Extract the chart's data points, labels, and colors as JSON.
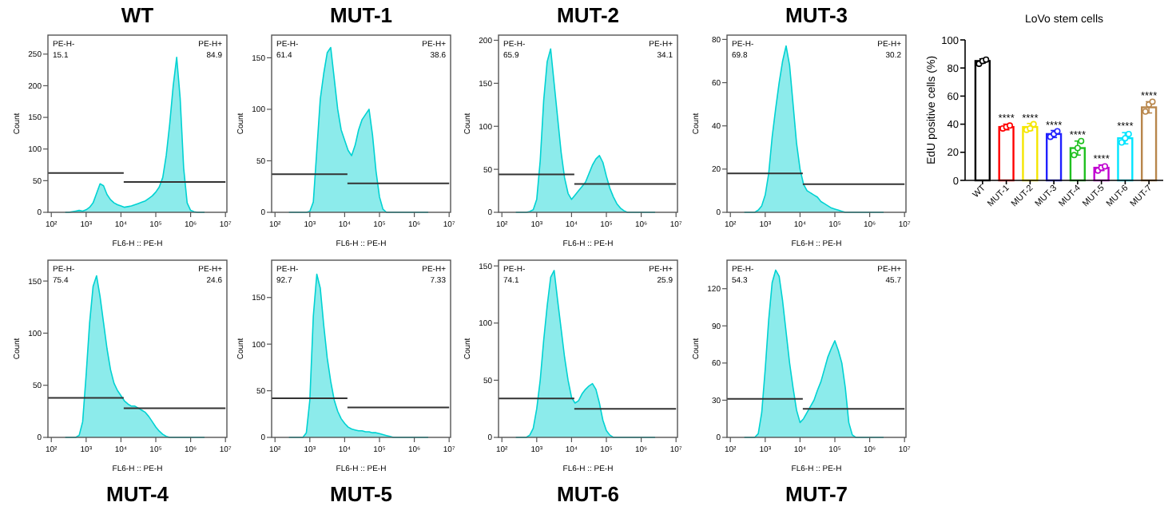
{
  "chart_data": [
    {
      "type": "area",
      "title": "WT",
      "xlabel": "FL6-H :: PE-H",
      "ylabel": "Count",
      "log": "x",
      "xlim": [
        80,
        11000000
      ],
      "xticks": [
        {
          "value": 100,
          "label": "10²"
        },
        {
          "value": 1000,
          "label": "10³"
        },
        {
          "value": 10000,
          "label": "10⁴"
        },
        {
          "value": 100000,
          "label": "10⁵"
        },
        {
          "value": 1000000,
          "label": "10⁶"
        },
        {
          "value": 10000000,
          "label": "10⁷"
        }
      ],
      "ylim": [
        0,
        280
      ],
      "yticks": [
        0,
        50,
        100,
        150,
        200,
        250
      ],
      "x": [
        251,
        316,
        398,
        501,
        631,
        794,
        1000,
        1259,
        1585,
        1995,
        2512,
        3162,
        3981,
        5012,
        6310,
        7943,
        10000,
        12589,
        15849,
        19953,
        25119,
        31623,
        39811,
        50119,
        63096,
        79433,
        100000,
        125893,
        158489,
        199526,
        251189,
        316228,
        398107,
        501187,
        630957,
        794328,
        1000000,
        1258925,
        1584893,
        1995262,
        2511886
      ],
      "series": [
        {
          "type": "area",
          "color": "#00d2d2",
          "values": [
            0,
            0,
            1,
            2,
            3,
            2,
            4,
            8,
            15,
            30,
            45,
            42,
            28,
            20,
            15,
            12,
            10,
            8,
            9,
            10,
            12,
            14,
            16,
            18,
            22,
            26,
            32,
            40,
            55,
            90,
            140,
            200,
            245,
            180,
            70,
            15,
            3,
            1,
            0,
            0,
            0
          ]
        },
        {
          "type": "line",
          "color": "#333333",
          "x": [
            80,
            12000
          ],
          "values": [
            62,
            62
          ]
        },
        {
          "type": "line",
          "color": "#333333",
          "x": [
            12000,
            10000000
          ],
          "values": [
            48,
            48
          ]
        }
      ],
      "annotations": [
        "PE-H-",
        "15.1",
        "PE-H+",
        "84.9"
      ]
    },
    {
      "type": "area",
      "title": "MUT-1",
      "xlabel": "FL6-H :: PE-H",
      "ylabel": "Count",
      "log": "x",
      "xlim": [
        80,
        11000000
      ],
      "xticks": [
        {
          "value": 100,
          "label": "10²"
        },
        {
          "value": 1000,
          "label": "10³"
        },
        {
          "value": 10000,
          "label": "10⁴"
        },
        {
          "value": 100000,
          "label": "10⁵"
        },
        {
          "value": 1000000,
          "label": "10⁶"
        },
        {
          "value": 10000000,
          "label": "10⁷"
        }
      ],
      "ylim": [
        0,
        172
      ],
      "yticks": [
        0,
        50,
        100,
        150
      ],
      "x": [
        251,
        316,
        398,
        501,
        631,
        794,
        1000,
        1259,
        1585,
        1995,
        2512,
        3162,
        3981,
        5012,
        6310,
        7943,
        10000,
        12589,
        15849,
        19953,
        25119,
        31623,
        39811,
        50119,
        63096,
        79433,
        100000,
        125893,
        158489,
        199526,
        251189,
        316228,
        398107,
        501187,
        630957,
        794328,
        1000000,
        1258925,
        1584893,
        1995262,
        2511886
      ],
      "series": [
        {
          "type": "area",
          "color": "#00d2d2",
          "values": [
            0,
            0,
            0,
            0,
            0,
            0,
            1,
            10,
            60,
            110,
            135,
            155,
            160,
            130,
            100,
            80,
            70,
            60,
            55,
            65,
            80,
            90,
            95,
            100,
            75,
            40,
            15,
            3,
            0,
            0,
            0,
            0,
            0,
            0,
            0,
            0,
            0,
            0,
            0,
            0,
            0
          ]
        },
        {
          "type": "line",
          "color": "#333333",
          "x": [
            80,
            12000
          ],
          "values": [
            37,
            37
          ]
        },
        {
          "type": "line",
          "color": "#333333",
          "x": [
            12000,
            10000000
          ],
          "values": [
            28,
            28
          ]
        }
      ],
      "annotations": [
        "PE-H-",
        "61.4",
        "PE-H+",
        "38.6"
      ]
    },
    {
      "type": "area",
      "title": "MUT-2",
      "xlabel": "FL6-H :: PE-H",
      "ylabel": "Count",
      "log": "x",
      "xlim": [
        80,
        11000000
      ],
      "xticks": [
        {
          "value": 100,
          "label": "10²"
        },
        {
          "value": 1000,
          "label": "10³"
        },
        {
          "value": 10000,
          "label": "10⁴"
        },
        {
          "value": 100000,
          "label": "10⁵"
        },
        {
          "value": 1000000,
          "label": "10⁶"
        },
        {
          "value": 10000000,
          "label": "10⁷"
        }
      ],
      "ylim": [
        0,
        206
      ],
      "yticks": [
        0,
        50,
        100,
        150,
        200
      ],
      "x": [
        251,
        316,
        398,
        501,
        631,
        794,
        1000,
        1259,
        1585,
        1995,
        2512,
        3162,
        3981,
        5012,
        6310,
        7943,
        10000,
        12589,
        15849,
        19953,
        25119,
        31623,
        39811,
        50119,
        63096,
        79433,
        100000,
        125893,
        158489,
        199526,
        251189,
        316228,
        398107,
        501187,
        630957,
        794328,
        1000000,
        1258925,
        1584893,
        1995262,
        2511886
      ],
      "series": [
        {
          "type": "area",
          "color": "#00d2d2",
          "values": [
            0,
            0,
            0,
            0,
            1,
            3,
            15,
            60,
            130,
            175,
            190,
            150,
            110,
            70,
            40,
            22,
            15,
            20,
            25,
            30,
            35,
            45,
            55,
            62,
            66,
            58,
            42,
            28,
            18,
            10,
            5,
            2,
            0,
            0,
            0,
            0,
            0,
            0,
            0,
            0,
            0
          ]
        },
        {
          "type": "line",
          "color": "#333333",
          "x": [
            80,
            12000
          ],
          "values": [
            44,
            44
          ]
        },
        {
          "type": "line",
          "color": "#333333",
          "x": [
            12000,
            10000000
          ],
          "values": [
            33,
            33
          ]
        }
      ],
      "annotations": [
        "PE-H-",
        "65.9",
        "PE-H+",
        "34.1"
      ]
    },
    {
      "type": "area",
      "title": "MUT-3",
      "xlabel": "FL6-H :: PE-H",
      "ylabel": "Count",
      "log": "x",
      "xlim": [
        80,
        11000000
      ],
      "xticks": [
        {
          "value": 100,
          "label": "10²"
        },
        {
          "value": 1000,
          "label": "10³"
        },
        {
          "value": 10000,
          "label": "10⁴"
        },
        {
          "value": 100000,
          "label": "10⁵"
        },
        {
          "value": 1000000,
          "label": "10⁶"
        },
        {
          "value": 10000000,
          "label": "10⁷"
        }
      ],
      "ylim": [
        0,
        82
      ],
      "yticks": [
        0,
        20,
        40,
        60,
        80
      ],
      "x": [
        251,
        316,
        398,
        501,
        631,
        794,
        1000,
        1259,
        1585,
        1995,
        2512,
        3162,
        3981,
        5012,
        6310,
        7943,
        10000,
        12589,
        15849,
        19953,
        25119,
        31623,
        39811,
        50119,
        63096,
        79433,
        100000,
        125893,
        158489,
        199526,
        251189,
        316228,
        398107,
        501187,
        630957,
        794328,
        1000000,
        1258925,
        1584893,
        1995262,
        2511886
      ],
      "series": [
        {
          "type": "area",
          "color": "#00d2d2",
          "values": [
            0,
            0,
            0,
            0,
            1,
            3,
            8,
            18,
            35,
            48,
            60,
            70,
            77,
            68,
            50,
            32,
            20,
            13,
            10,
            9,
            8,
            7,
            5,
            4,
            3,
            2,
            1.5,
            1,
            0.5,
            0,
            0,
            0,
            0,
            0,
            0,
            0,
            0,
            0,
            0,
            0,
            0
          ]
        },
        {
          "type": "line",
          "color": "#333333",
          "x": [
            80,
            12000
          ],
          "values": [
            18,
            18
          ]
        },
        {
          "type": "line",
          "color": "#333333",
          "x": [
            12000,
            10000000
          ],
          "values": [
            13,
            13
          ]
        }
      ],
      "annotations": [
        "PE-H-",
        "69.8",
        "PE-H+",
        "30.2"
      ]
    },
    {
      "type": "area",
      "title": "MUT-4",
      "xlabel": "FL6-H :: PE-H",
      "ylabel": "Count",
      "log": "x",
      "xlim": [
        80,
        11000000
      ],
      "xticks": [
        {
          "value": 100,
          "label": "10²"
        },
        {
          "value": 1000,
          "label": "10³"
        },
        {
          "value": 10000,
          "label": "10⁴"
        },
        {
          "value": 100000,
          "label": "10⁵"
        },
        {
          "value": 1000000,
          "label": "10⁶"
        },
        {
          "value": 10000000,
          "label": "10⁷"
        }
      ],
      "ylim": [
        0,
        170
      ],
      "yticks": [
        0,
        50,
        100,
        150
      ],
      "x": [
        251,
        316,
        398,
        501,
        631,
        794,
        1000,
        1259,
        1585,
        1995,
        2512,
        3162,
        3981,
        5012,
        6310,
        7943,
        10000,
        12589,
        15849,
        19953,
        25119,
        31623,
        39811,
        50119,
        63096,
        79433,
        100000,
        125893,
        158489,
        199526,
        251189,
        316228,
        398107,
        501187,
        630957,
        794328,
        1000000,
        1258925,
        1584893,
        1995262,
        2511886
      ],
      "series": [
        {
          "type": "area",
          "color": "#00d2d2",
          "values": [
            0,
            0,
            0,
            0,
            2,
            15,
            60,
            110,
            145,
            155,
            135,
            110,
            85,
            65,
            52,
            45,
            40,
            35,
            32,
            30,
            30,
            28,
            26,
            24,
            20,
            15,
            10,
            6,
            3,
            1,
            0,
            0,
            0,
            0,
            0,
            0,
            0,
            0,
            0,
            0,
            0
          ]
        },
        {
          "type": "line",
          "color": "#333333",
          "x": [
            80,
            12000
          ],
          "values": [
            38,
            38
          ]
        },
        {
          "type": "line",
          "color": "#333333",
          "x": [
            12000,
            10000000
          ],
          "values": [
            28,
            28
          ]
        }
      ],
      "annotations": [
        "PE-H-",
        "75.4",
        "PE-H+",
        "24.6"
      ]
    },
    {
      "type": "area",
      "title": "MUT-5",
      "xlabel": "FL6-H :: PE-H",
      "ylabel": "Count",
      "log": "x",
      "xlim": [
        80,
        11000000
      ],
      "xticks": [
        {
          "value": 100,
          "label": "10²"
        },
        {
          "value": 1000,
          "label": "10³"
        },
        {
          "value": 10000,
          "label": "10⁴"
        },
        {
          "value": 100000,
          "label": "10⁵"
        },
        {
          "value": 1000000,
          "label": "10⁶"
        },
        {
          "value": 10000000,
          "label": "10⁷"
        }
      ],
      "ylim": [
        0,
        190
      ],
      "yticks": [
        0,
        50,
        100,
        150
      ],
      "x": [
        251,
        316,
        398,
        501,
        631,
        794,
        1000,
        1259,
        1585,
        1995,
        2512,
        3162,
        3981,
        5012,
        6310,
        7943,
        10000,
        12589,
        15849,
        19953,
        25119,
        31623,
        39811,
        50119,
        63096,
        79433,
        100000,
        125893,
        158489,
        199526,
        251189,
        316228,
        398107,
        501187,
        630957,
        794328,
        1000000,
        1258925,
        1584893,
        1995262,
        2511886
      ],
      "series": [
        {
          "type": "area",
          "color": "#00d2d2",
          "values": [
            0,
            0,
            0,
            0,
            0,
            5,
            40,
            130,
            175,
            160,
            120,
            85,
            60,
            40,
            28,
            20,
            15,
            11,
            9,
            8,
            7,
            7,
            6,
            6,
            5,
            5,
            4,
            3,
            2,
            1,
            0,
            0,
            0,
            0,
            0,
            0,
            0,
            0,
            0,
            0,
            0
          ]
        },
        {
          "type": "line",
          "color": "#333333",
          "x": [
            80,
            12000
          ],
          "values": [
            42,
            42
          ]
        },
        {
          "type": "line",
          "color": "#333333",
          "x": [
            12000,
            10000000
          ],
          "values": [
            32,
            32
          ]
        }
      ],
      "annotations": [
        "PE-H-",
        "92.7",
        "PE-H+",
        "7.33"
      ]
    },
    {
      "type": "area",
      "title": "MUT-6",
      "xlabel": "FL6-H :: PE-H",
      "ylabel": "Count",
      "log": "x",
      "xlim": [
        80,
        11000000
      ],
      "xticks": [
        {
          "value": 100,
          "label": "10²"
        },
        {
          "value": 1000,
          "label": "10³"
        },
        {
          "value": 10000,
          "label": "10⁴"
        },
        {
          "value": 100000,
          "label": "10⁵"
        },
        {
          "value": 1000000,
          "label": "10⁶"
        },
        {
          "value": 10000000,
          "label": "10⁷"
        }
      ],
      "ylim": [
        0,
        155
      ],
      "yticks": [
        0,
        50,
        100,
        150
      ],
      "x": [
        251,
        316,
        398,
        501,
        631,
        794,
        1000,
        1259,
        1585,
        1995,
        2512,
        3162,
        3981,
        5012,
        6310,
        7943,
        10000,
        12589,
        15849,
        19953,
        25119,
        31623,
        39811,
        50119,
        63096,
        79433,
        100000,
        125893,
        158489,
        199526,
        251189,
        316228,
        398107,
        501187,
        630957,
        794328,
        1000000,
        1258925,
        1584893,
        1995262,
        2511886
      ],
      "series": [
        {
          "type": "area",
          "color": "#00d2d2",
          "values": [
            0,
            0,
            0,
            0,
            2,
            8,
            25,
            50,
            85,
            115,
            140,
            146,
            120,
            95,
            70,
            50,
            35,
            30,
            32,
            38,
            42,
            45,
            47,
            42,
            30,
            15,
            6,
            2,
            0,
            0,
            0,
            0,
            0,
            0,
            0,
            0,
            0,
            0,
            0,
            0,
            0
          ]
        },
        {
          "type": "line",
          "color": "#333333",
          "x": [
            80,
            12000
          ],
          "values": [
            34,
            34
          ]
        },
        {
          "type": "line",
          "color": "#333333",
          "x": [
            12000,
            10000000
          ],
          "values": [
            25,
            25
          ]
        }
      ],
      "annotations": [
        "PE-H-",
        "74.1",
        "PE-H+",
        "25.9"
      ]
    },
    {
      "type": "area",
      "title": "MUT-7",
      "xlabel": "FL6-H :: PE-H",
      "ylabel": "Count",
      "log": "x",
      "xlim": [
        80,
        11000000
      ],
      "xticks": [
        {
          "value": 100,
          "label": "10²"
        },
        {
          "value": 1000,
          "label": "10³"
        },
        {
          "value": 10000,
          "label": "10⁴"
        },
        {
          "value": 100000,
          "label": "10⁵"
        },
        {
          "value": 1000000,
          "label": "10⁶"
        },
        {
          "value": 10000000,
          "label": "10⁷"
        }
      ],
      "ylim": [
        0,
        143
      ],
      "yticks": [
        0,
        30,
        60,
        90,
        120
      ],
      "x": [
        251,
        316,
        398,
        501,
        631,
        794,
        1000,
        1259,
        1585,
        1995,
        2512,
        3162,
        3981,
        5012,
        6310,
        7943,
        10000,
        12589,
        15849,
        19953,
        25119,
        31623,
        39811,
        50119,
        63096,
        79433,
        100000,
        125893,
        158489,
        199526,
        251189,
        316228,
        398107,
        501187,
        630957,
        794328,
        1000000,
        1258925,
        1584893,
        1995262,
        2511886
      ],
      "series": [
        {
          "type": "area",
          "color": "#00d2d2",
          "values": [
            0,
            0,
            0,
            0,
            3,
            20,
            55,
            95,
            125,
            135,
            130,
            110,
            85,
            60,
            40,
            22,
            12,
            15,
            20,
            25,
            30,
            38,
            45,
            55,
            65,
            72,
            78,
            70,
            60,
            40,
            12,
            2,
            0,
            0,
            0,
            0,
            0,
            0,
            0,
            0,
            0
          ]
        },
        {
          "type": "line",
          "color": "#333333",
          "x": [
            80,
            12000
          ],
          "values": [
            31,
            31
          ]
        },
        {
          "type": "line",
          "color": "#333333",
          "x": [
            12000,
            10000000
          ],
          "values": [
            23,
            23
          ]
        }
      ],
      "annotations": [
        "PE-H-",
        "54.3",
        "PE-H+",
        "45.7"
      ]
    },
    {
      "type": "bar",
      "title": "LoVo stem cells",
      "ylabel": "EdU positive cells (%)",
      "categories": [
        "WT",
        "MUT-1",
        "MUT-2",
        "MUT-3",
        "MUT-4",
        "MUT-5",
        "MUT-6",
        "MUT-7"
      ],
      "ylim": [
        0,
        100
      ],
      "yticks": [
        0,
        20,
        40,
        60,
        80,
        100
      ],
      "series": [
        {
          "type": "bar",
          "values": [
            85,
            38,
            38,
            33,
            23,
            9,
            30,
            52
          ],
          "colors": [
            "#000000",
            "#ff0000",
            "#f5e600",
            "#2020ff",
            "#20c020",
            "#c000d0",
            "#00e5ff",
            "#b8864b"
          ],
          "errors": [
            1.5,
            2,
            2.5,
            2.5,
            5,
            2,
            4,
            4
          ]
        },
        {
          "type": "scatter",
          "marker": "circle",
          "x": [
            "WT",
            "WT",
            "WT",
            "MUT-1",
            "MUT-1",
            "MUT-1",
            "MUT-2",
            "MUT-2",
            "MUT-2",
            "MUT-3",
            "MUT-3",
            "MUT-3",
            "MUT-4",
            "MUT-4",
            "MUT-4",
            "MUT-5",
            "MUT-5",
            "MUT-5",
            "MUT-6",
            "MUT-6",
            "MUT-6",
            "MUT-7",
            "MUT-7",
            "MUT-7"
          ],
          "values": [
            83,
            85,
            86,
            37,
            38,
            39,
            36,
            37,
            40,
            31,
            33,
            35,
            18,
            23,
            28,
            7,
            9,
            10,
            27,
            30,
            33,
            49,
            54,
            56
          ],
          "colors": [
            "#000000",
            "#000000",
            "#000000",
            "#ff0000",
            "#ff0000",
            "#ff0000",
            "#f5e600",
            "#f5e600",
            "#f5e600",
            "#2020ff",
            "#2020ff",
            "#2020ff",
            "#20c020",
            "#20c020",
            "#20c020",
            "#c000d0",
            "#c000d0",
            "#c000d0",
            "#00e5ff",
            "#00e5ff",
            "#00e5ff",
            "#b8864b",
            "#b8864b",
            "#b8864b"
          ]
        }
      ],
      "annotations": [
        {
          "text": "****",
          "x": "MUT-1",
          "y": 41
        },
        {
          "text": "****",
          "x": "MUT-2",
          "y": 41
        },
        {
          "text": "****",
          "x": "MUT-3",
          "y": 36
        },
        {
          "text": "****",
          "x": "MUT-4",
          "y": 29
        },
        {
          "text": "****",
          "x": "MUT-5",
          "y": 12
        },
        {
          "text": "****",
          "x": "MUT-6",
          "y": 35
        },
        {
          "text": "****",
          "x": "MUT-7",
          "y": 57
        }
      ]
    }
  ]
}
